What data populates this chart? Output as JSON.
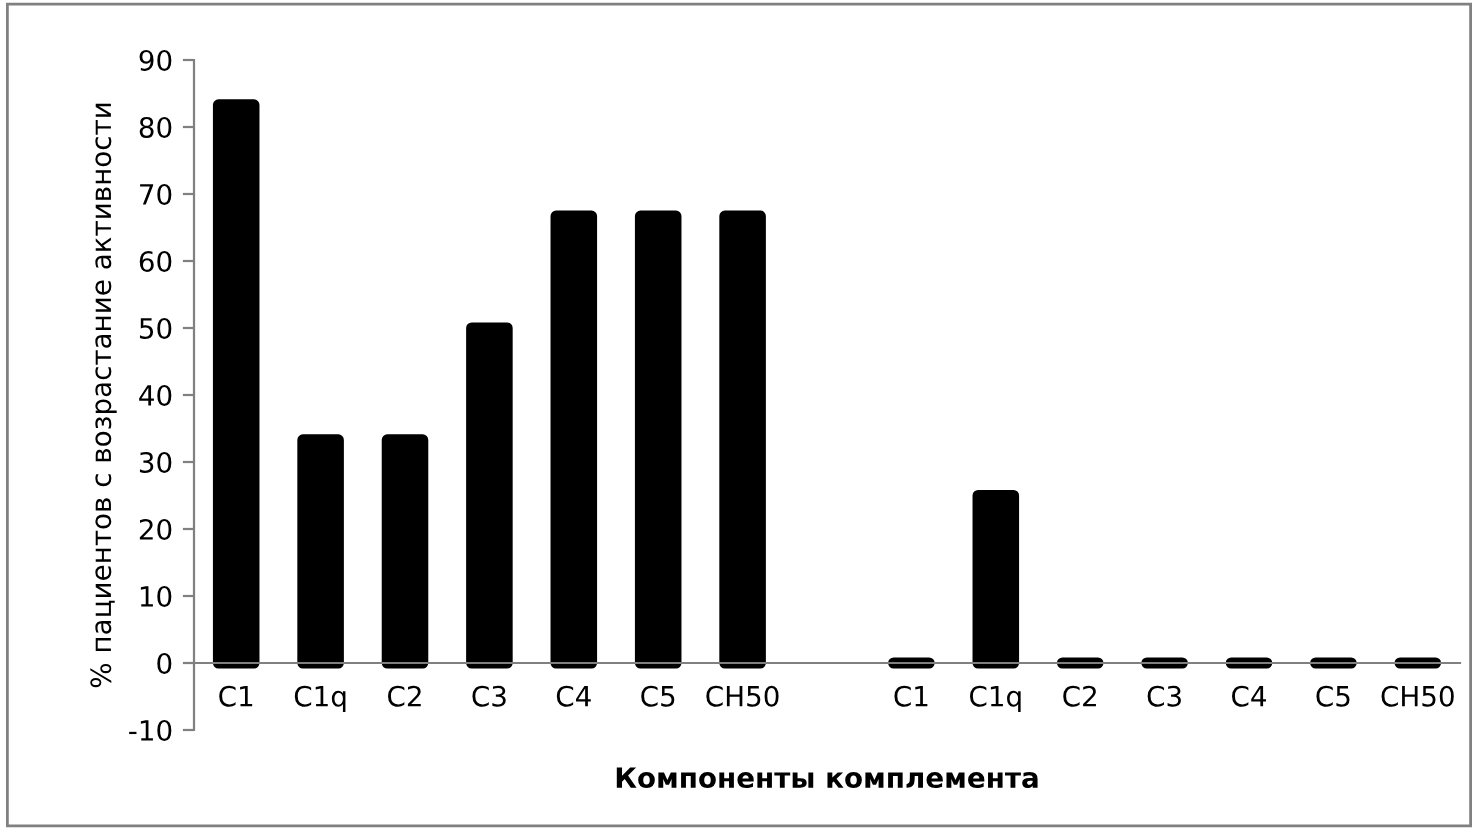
{
  "chart_data": {
    "type": "bar",
    "xlabel": "Компоненты комплемента",
    "ylabel": "% пациентов с возрастание активности",
    "categories": [
      "C1",
      "C1q",
      "C2",
      "C3",
      "C4",
      "C5",
      "CH50",
      null,
      "C1",
      "C1q",
      "C2",
      "C3",
      "C4",
      "C5",
      "CH50"
    ],
    "values": [
      83.3,
      33.3,
      33.3,
      50,
      66.7,
      66.7,
      66.7,
      null,
      0,
      25,
      0,
      0,
      0,
      0,
      0
    ],
    "color": "#000000",
    "ylim": [
      -10,
      90
    ],
    "yticks": [
      -10,
      0,
      10,
      20,
      30,
      40,
      50,
      60,
      70,
      80,
      90
    ],
    "grid": false,
    "legend": false
  }
}
